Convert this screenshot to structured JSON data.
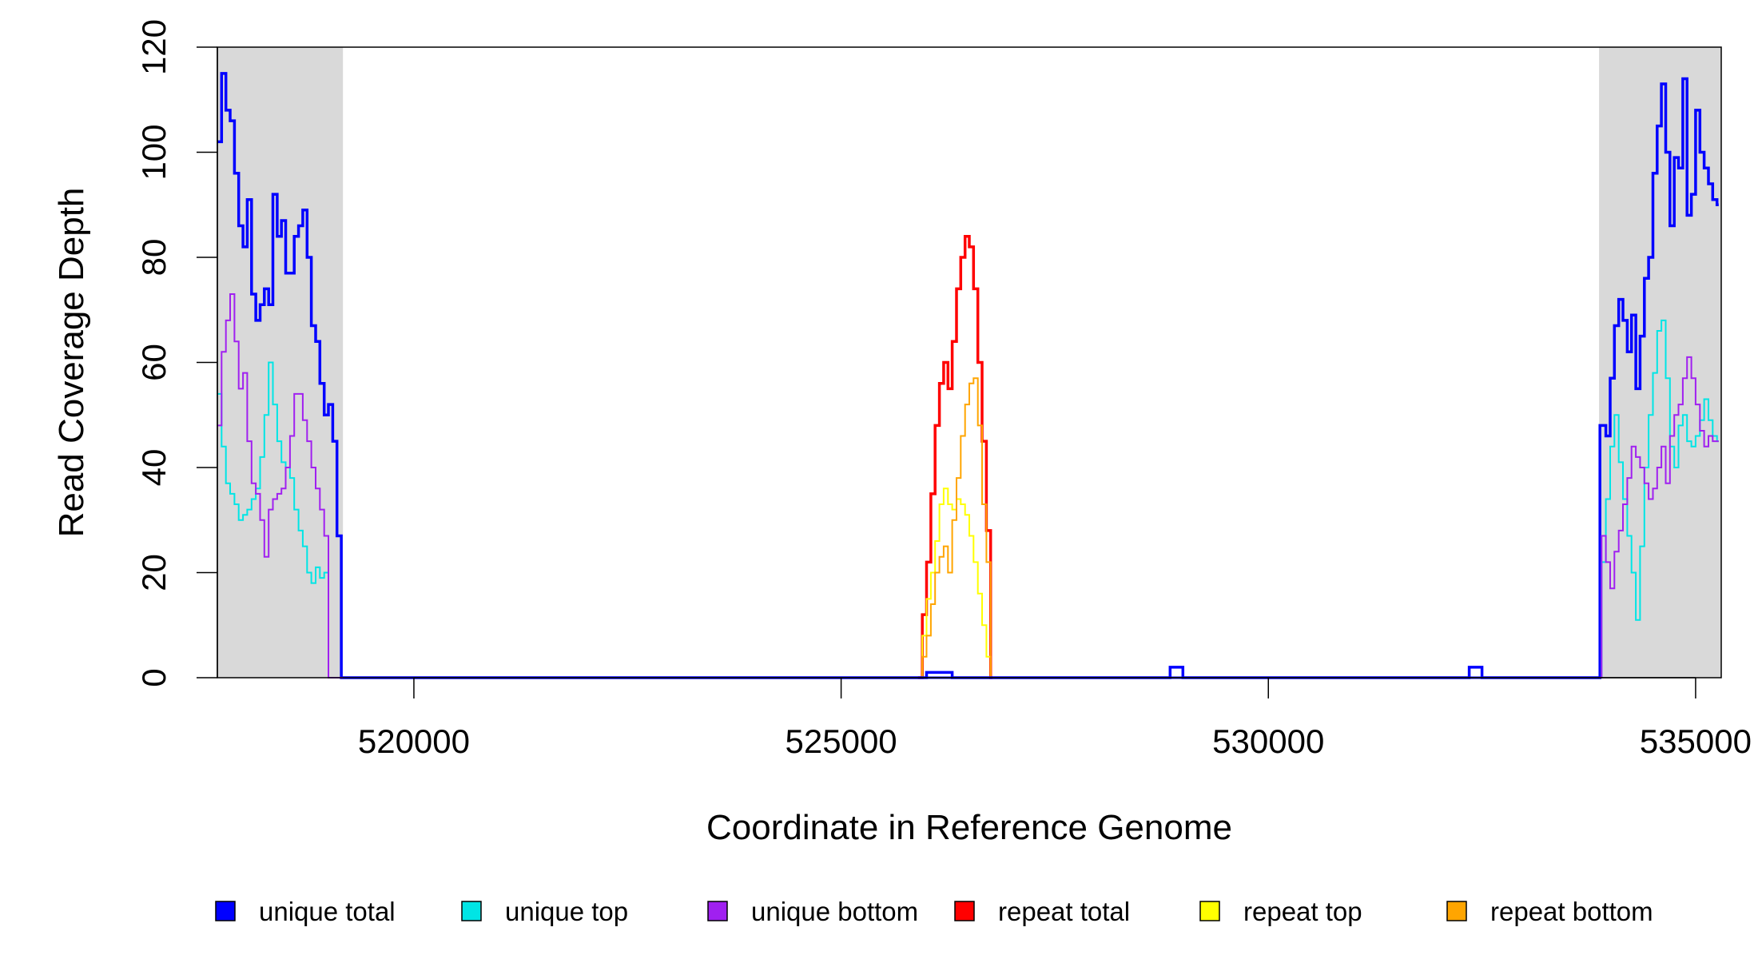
{
  "chart_data": {
    "type": "line",
    "step": true,
    "xlabel": "Coordinate in Reference Genome",
    "ylabel": "Read Coverage Depth",
    "xlim": [
      517700,
      535300
    ],
    "ylim": [
      0,
      120
    ],
    "x_ticks": [
      520000,
      525000,
      530000,
      535000
    ],
    "x_tick_labels": [
      "520000",
      "525000",
      "530000",
      "535000"
    ],
    "y_ticks": [
      0,
      20,
      40,
      60,
      80,
      100,
      120
    ],
    "y_tick_labels": [
      "0",
      "20",
      "40",
      "60",
      "80",
      "100",
      "120"
    ],
    "shaded_regions": [
      {
        "start": 517700,
        "end": 519170,
        "color": "#d9d9d9"
      },
      {
        "start": 533870,
        "end": 535300,
        "color": "#d9d9d9"
      }
    ],
    "grid": false,
    "legend_position": "bottom",
    "series": [
      {
        "name": "unique total",
        "color": "#0000ff",
        "width": 3.5,
        "x": [
          517700,
          517750,
          517800,
          517850,
          517900,
          517950,
          518000,
          518050,
          518100,
          518150,
          518200,
          518250,
          518300,
          518350,
          518400,
          518450,
          518500,
          518550,
          518600,
          518650,
          518700,
          518750,
          518800,
          518850,
          518900,
          518950,
          519000,
          519050,
          519100,
          519150,
          519170,
          519250,
          525900,
          526000,
          526200,
          526300,
          528800,
          528850,
          528950,
          529000,
          532300,
          532350,
          532450,
          532500,
          533870,
          533880,
          533950,
          534000,
          534050,
          534100,
          534150,
          534200,
          534250,
          534300,
          534350,
          534400,
          534450,
          534500,
          534550,
          534600,
          534650,
          534700,
          534750,
          534800,
          534850,
          534900,
          534950,
          535000,
          535050,
          535100,
          535150,
          535200,
          535250
        ],
        "y": [
          102,
          115,
          108,
          106,
          96,
          86,
          82,
          91,
          73,
          68,
          71,
          74,
          71,
          92,
          84,
          87,
          77,
          77,
          84,
          86,
          89,
          80,
          67,
          64,
          56,
          50,
          52,
          45,
          27,
          0,
          0,
          0,
          0,
          1,
          1,
          0,
          0,
          2,
          2,
          0,
          0,
          2,
          2,
          0,
          0,
          48,
          46,
          57,
          67,
          72,
          68,
          62,
          69,
          55,
          65,
          76,
          80,
          96,
          105,
          113,
          100,
          86,
          99,
          97,
          114,
          88,
          92,
          108,
          100,
          97,
          94,
          91,
          90
        ]
      },
      {
        "name": "unique top",
        "color": "#00e5e5",
        "width": 2,
        "x": [
          517700,
          517750,
          517800,
          517850,
          517900,
          517950,
          518000,
          518050,
          518100,
          518150,
          518200,
          518250,
          518300,
          518350,
          518400,
          518450,
          518500,
          518550,
          518600,
          518650,
          518700,
          518750,
          518800,
          518850,
          518900,
          518950,
          519000,
          519050,
          519100,
          519150,
          519170,
          533870,
          533900,
          533950,
          534000,
          534050,
          534100,
          534150,
          534200,
          534250,
          534300,
          534350,
          534400,
          534450,
          534500,
          534550,
          534600,
          534650,
          534700,
          534750,
          534800,
          534850,
          534900,
          534950,
          535000,
          535050,
          535100,
          535150,
          535200,
          535250
        ],
        "y": [
          54,
          44,
          37,
          35,
          33,
          30,
          31,
          32,
          34,
          36,
          42,
          50,
          60,
          52,
          45,
          41,
          40,
          38,
          32,
          28,
          25,
          20,
          18,
          21,
          19,
          20,
          0,
          0,
          0,
          0,
          0,
          0,
          22,
          34,
          44,
          50,
          41,
          34,
          27,
          20,
          11,
          25,
          40,
          50,
          58,
          66,
          68,
          57,
          44,
          40,
          48,
          50,
          45,
          44,
          46,
          49,
          53,
          49,
          46,
          45
        ]
      },
      {
        "name": "unique bottom",
        "color": "#a020f0",
        "width": 2,
        "x": [
          517700,
          517750,
          517800,
          517850,
          517900,
          517950,
          518000,
          518050,
          518100,
          518150,
          518200,
          518250,
          518300,
          518350,
          518400,
          518450,
          518500,
          518550,
          518600,
          518650,
          518700,
          518750,
          518800,
          518850,
          518900,
          518950,
          519000,
          519050,
          519100,
          519150,
          519170,
          533870,
          533900,
          533950,
          534000,
          534050,
          534100,
          534150,
          534200,
          534250,
          534300,
          534350,
          534400,
          534450,
          534500,
          534550,
          534600,
          534650,
          534700,
          534750,
          534800,
          534850,
          534900,
          534950,
          535000,
          535050,
          535100,
          535150,
          535200,
          535250
        ],
        "y": [
          48,
          62,
          68,
          73,
          64,
          55,
          58,
          45,
          37,
          35,
          30,
          23,
          32,
          34,
          35,
          36,
          40,
          46,
          54,
          54,
          49,
          45,
          40,
          36,
          32,
          27,
          0,
          0,
          0,
          0,
          0,
          0,
          27,
          22,
          17,
          24,
          28,
          33,
          38,
          44,
          42,
          40,
          37,
          34,
          36,
          40,
          44,
          37,
          46,
          50,
          52,
          57,
          61,
          57,
          52,
          47,
          44,
          46,
          45,
          45
        ]
      },
      {
        "name": "repeat total",
        "color": "#ff0000",
        "width": 3.5,
        "x": [
          525900,
          525950,
          526000,
          526050,
          526100,
          526150,
          526200,
          526250,
          526300,
          526350,
          526400,
          526450,
          526500,
          526550,
          526600,
          526650,
          526700,
          526750
        ],
        "y": [
          0,
          12,
          22,
          35,
          48,
          56,
          60,
          55,
          64,
          74,
          80,
          84,
          82,
          74,
          60,
          45,
          28,
          0
        ]
      },
      {
        "name": "repeat top",
        "color": "#ffff00",
        "width": 2,
        "x": [
          525900,
          525950,
          526000,
          526050,
          526100,
          526150,
          526200,
          526250,
          526300,
          526350,
          526400,
          526450,
          526500,
          526550,
          526600,
          526650,
          526700,
          526750
        ],
        "y": [
          0,
          8,
          15,
          20,
          26,
          33,
          36,
          33,
          32,
          34,
          33,
          31,
          27,
          22,
          16,
          10,
          4,
          0
        ]
      },
      {
        "name": "repeat bottom",
        "color": "#ffa500",
        "width": 2,
        "x": [
          525900,
          525950,
          526000,
          526050,
          526100,
          526150,
          526200,
          526250,
          526300,
          526350,
          526400,
          526450,
          526500,
          526550,
          526600,
          526650,
          526700,
          526750
        ],
        "y": [
          0,
          4,
          8,
          14,
          20,
          23,
          25,
          20,
          30,
          38,
          46,
          52,
          56,
          57,
          48,
          33,
          22,
          0
        ]
      }
    ]
  }
}
